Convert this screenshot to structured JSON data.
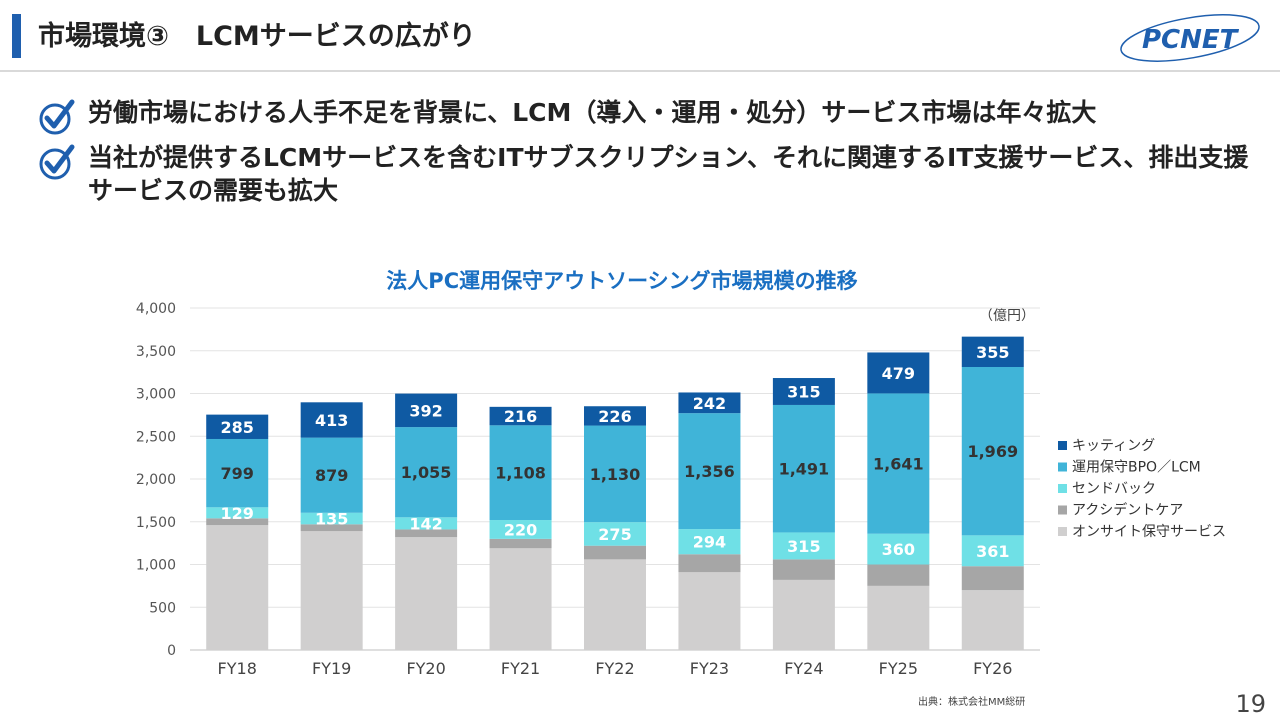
{
  "header": {
    "title": "市場環境③　LCMサービスの広がり",
    "logo_text": "PCNET"
  },
  "bullets": [
    "労働市場における人手不足を背景に、LCM（導入・運用・処分）サービス市場は年々拡大",
    "当社が提供するLCMサービスを含むITサブスクリプション、それに関連するIT支援サービス、排出支援サービスの需要も拡大"
  ],
  "footer": {
    "source": "出典：株式会社MM総研",
    "page_number": "19"
  },
  "colors": {
    "accent": "#1f5fae",
    "check": "#1f5fae",
    "title_chart": "#1a6fc2"
  },
  "chart_data": {
    "type": "bar",
    "stacked": true,
    "title": "法人PC運用保守アウトソーシング市場規模の推移",
    "unit_label": "（億円）",
    "categories": [
      "FY18",
      "FY19",
      "FY20",
      "FY21",
      "FY22",
      "FY23",
      "FY24",
      "FY25",
      "FY26"
    ],
    "ylim": [
      0,
      4000
    ],
    "yticks": [
      0,
      500,
      1000,
      1500,
      2000,
      2500,
      3000,
      3500,
      4000
    ],
    "ytick_labels": [
      "0",
      "500",
      "1,000",
      "1,500",
      "2,000",
      "2,500",
      "3,000",
      "3,500",
      "4,000"
    ],
    "grid": true,
    "legend_position": "right",
    "series": [
      {
        "name": "オンサイト保守サービス",
        "color": "#d0cfcf",
        "labels": false,
        "values": [
          1460,
          1390,
          1320,
          1190,
          1060,
          910,
          820,
          750,
          700
        ]
      },
      {
        "name": "アクシデントケア",
        "color": "#a6a6a6",
        "labels": false,
        "values": [
          80,
          80,
          90,
          110,
          160,
          210,
          240,
          250,
          280
        ]
      },
      {
        "name": "センドバック",
        "color": "#6fe0e6",
        "labels": true,
        "label_color": "#ffffff",
        "values": [
          129,
          135,
          142,
          220,
          275,
          294,
          315,
          360,
          361
        ],
        "value_labels": [
          "129",
          "135",
          "142",
          "220",
          "275",
          "294",
          "315",
          "360",
          "361"
        ]
      },
      {
        "name": "運用保守BPO／LCM",
        "color": "#40b4d8",
        "labels": true,
        "label_color": "#333333",
        "values": [
          799,
          879,
          1055,
          1108,
          1130,
          1356,
          1491,
          1641,
          1969
        ],
        "value_labels": [
          "799",
          "879",
          "1,055",
          "1,108",
          "1,130",
          "1,356",
          "1,491",
          "1,641",
          "1,969"
        ]
      },
      {
        "name": "キッティング",
        "color": "#0f5aa3",
        "labels": true,
        "label_color": "#ffffff",
        "values": [
          285,
          413,
          392,
          216,
          226,
          242,
          315,
          479,
          355
        ],
        "value_labels": [
          "285",
          "413",
          "392",
          "216",
          "226",
          "242",
          "315",
          "479",
          "355"
        ]
      }
    ]
  }
}
